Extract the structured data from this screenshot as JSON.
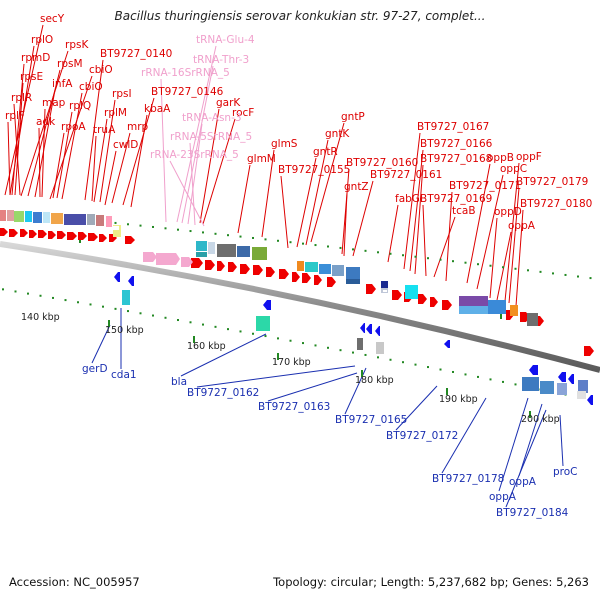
{
  "title": "Bacillus thuringiensis serovar konkukian str. 97-27, complet...",
  "footer": {
    "accession": "Accession: NC_005957",
    "topology": "Topology: circular; Length: 5,237,682 bp; Genes: 5,263"
  },
  "colors": {
    "forward_label": "#dd0000",
    "rna_label": "#f0a0cc",
    "reverse_label": "#1a2fb0",
    "forward_gene": "#ee0000",
    "reverse_gene": "#1010ee",
    "backbone": "#9a9a9a",
    "tick_major": "#228822",
    "tick_minor": "#228822"
  },
  "scale_labels": [
    "140 kbp",
    "150 kbp",
    "160 kbp",
    "170 kbp",
    "180 kbp",
    "190 kbp",
    "200 kbp"
  ],
  "forward_labels": [
    "secY",
    "rplO",
    "rpmD",
    "rpsK",
    "rpsE",
    "rpsM",
    "infA",
    "cbiO",
    "rplR",
    "map",
    "cbiO",
    "rplF",
    "adk",
    "rplQ",
    "rpoA",
    "BT9727_0140",
    "truA",
    "rpsI",
    "rplM",
    "BT9727_0146",
    "kbaA",
    "mrp",
    "cwlD",
    "rocF",
    "garK",
    "glmS",
    "glmM",
    "gntP",
    "gntK",
    "gntR",
    "BT9727_0155",
    "BT9727_0160",
    "gntZ",
    "BT9727_0161",
    "BT9727_0167",
    "BT9727_0166",
    "BT9727_0168",
    "fabG",
    "BT9727_0169",
    "tcaB",
    "oppC",
    "oppB",
    "oppF",
    "BT9727_0171",
    "BT9727_0179",
    "BT9727_0180",
    "oppD",
    "oppA"
  ],
  "rna_labels": [
    "tRNA-Glu-4",
    "tRNA-Thr-3",
    "rRNA-16SrRNA_5",
    "tRNA-Asn-3",
    "rRNA-5SrRNA_5",
    "rRNA-23SrRNA_5"
  ],
  "reverse_labels": [
    "gerD",
    "cda1",
    "bla",
    "BT9727_0162",
    "BT9727_0163",
    "BT9727_0165",
    "BT9727_0172",
    "BT9727_0178",
    "oppA",
    "oppA",
    "BT9727_0184",
    "proC"
  ]
}
